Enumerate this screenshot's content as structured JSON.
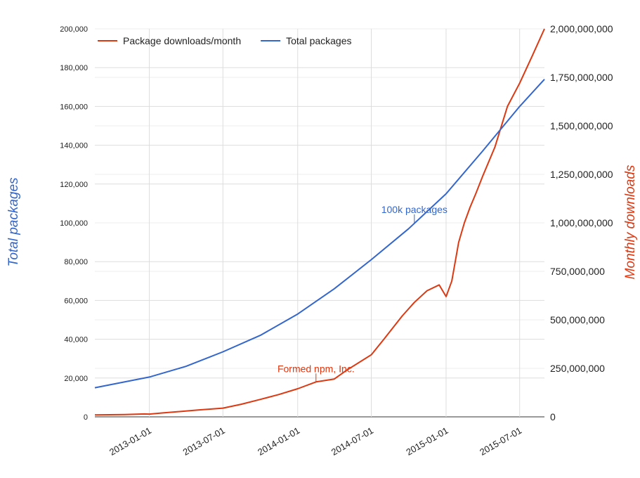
{
  "chart_data": {
    "type": "line",
    "x_range": [
      "2012-08-20",
      "2015-08-31"
    ],
    "x_ticks": [
      "2013-01-01",
      "2013-07-01",
      "2014-01-01",
      "2014-07-01",
      "2015-01-01",
      "2015-07-01"
    ],
    "y_left": {
      "label": "Total packages",
      "range": [
        0,
        200000
      ],
      "ticks": [
        0,
        20000,
        40000,
        60000,
        80000,
        100000,
        120000,
        140000,
        160000,
        180000,
        200000
      ],
      "tick_labels": [
        "0",
        "20,000",
        "40,000",
        "60,000",
        "80,000",
        "100,000",
        "120,000",
        "140,000",
        "160,000",
        "180,000",
        "200,000"
      ]
    },
    "y_right": {
      "label": "Monthly downloads",
      "range": [
        0,
        2000000000
      ],
      "ticks": [
        0,
        250000000,
        500000000,
        750000000,
        1000000000,
        1250000000,
        1500000000,
        1750000000,
        2000000000
      ],
      "tick_labels": [
        "0",
        "250,000,000",
        "500,000,000",
        "750,000,000",
        "1,000,000,000",
        "1,250,000,000",
        "1,500,000,000",
        "1,750,000,000",
        "2,000,000,000"
      ]
    },
    "grid": true,
    "legend_position": "top-left",
    "series": [
      {
        "name": "Package downloads/month",
        "axis": "right",
        "color": "#dc3912",
        "points": [
          [
            "2012-08-20",
            10000000
          ],
          [
            "2012-11-01",
            12000000
          ],
          [
            "2012-12-20",
            15000000
          ],
          [
            "2013-01-01",
            14000000
          ],
          [
            "2013-02-01",
            20000000
          ],
          [
            "2013-05-01",
            35000000
          ],
          [
            "2013-07-01",
            45000000
          ],
          [
            "2013-08-15",
            65000000
          ],
          [
            "2013-10-01",
            90000000
          ],
          [
            "2013-11-15",
            115000000
          ],
          [
            "2014-01-01",
            145000000
          ],
          [
            "2014-02-15",
            180000000
          ],
          [
            "2014-04-01",
            195000000
          ],
          [
            "2014-05-01",
            240000000
          ],
          [
            "2014-07-01",
            320000000
          ],
          [
            "2014-08-01",
            400000000
          ],
          [
            "2014-09-15",
            520000000
          ],
          [
            "2014-10-15",
            590000000
          ],
          [
            "2014-11-15",
            650000000
          ],
          [
            "2014-12-15",
            680000000
          ],
          [
            "2015-01-01",
            620000000
          ],
          [
            "2015-01-15",
            700000000
          ],
          [
            "2015-02-01",
            900000000
          ],
          [
            "2015-02-15",
            1000000000
          ],
          [
            "2015-03-01",
            1080000000
          ],
          [
            "2015-03-15",
            1150000000
          ],
          [
            "2015-04-01",
            1240000000
          ],
          [
            "2015-05-01",
            1390000000
          ],
          [
            "2015-06-01",
            1600000000
          ],
          [
            "2015-07-01",
            1720000000
          ],
          [
            "2015-08-01",
            1860000000
          ],
          [
            "2015-08-31",
            2000000000
          ]
        ]
      },
      {
        "name": "Total packages",
        "axis": "left",
        "color": "#3366cc",
        "points": [
          [
            "2012-08-20",
            15000
          ],
          [
            "2013-01-01",
            20500
          ],
          [
            "2013-04-01",
            26000
          ],
          [
            "2013-07-01",
            33500
          ],
          [
            "2013-10-01",
            42000
          ],
          [
            "2014-01-01",
            53000
          ],
          [
            "2014-04-01",
            66000
          ],
          [
            "2014-07-01",
            81000
          ],
          [
            "2014-10-01",
            97000
          ],
          [
            "2015-01-01",
            115000
          ],
          [
            "2015-04-01",
            137000
          ],
          [
            "2015-07-01",
            160000
          ],
          [
            "2015-08-31",
            174000
          ]
        ]
      }
    ],
    "annotations": [
      {
        "text": "Formed npm, Inc.",
        "x": "2014-02-15",
        "axis": "right",
        "y": 180000000,
        "color": "#dc3912"
      },
      {
        "text": "100k packages",
        "x": "2014-10-15",
        "axis": "left",
        "y": 100000,
        "color": "#3366cc"
      }
    ]
  }
}
